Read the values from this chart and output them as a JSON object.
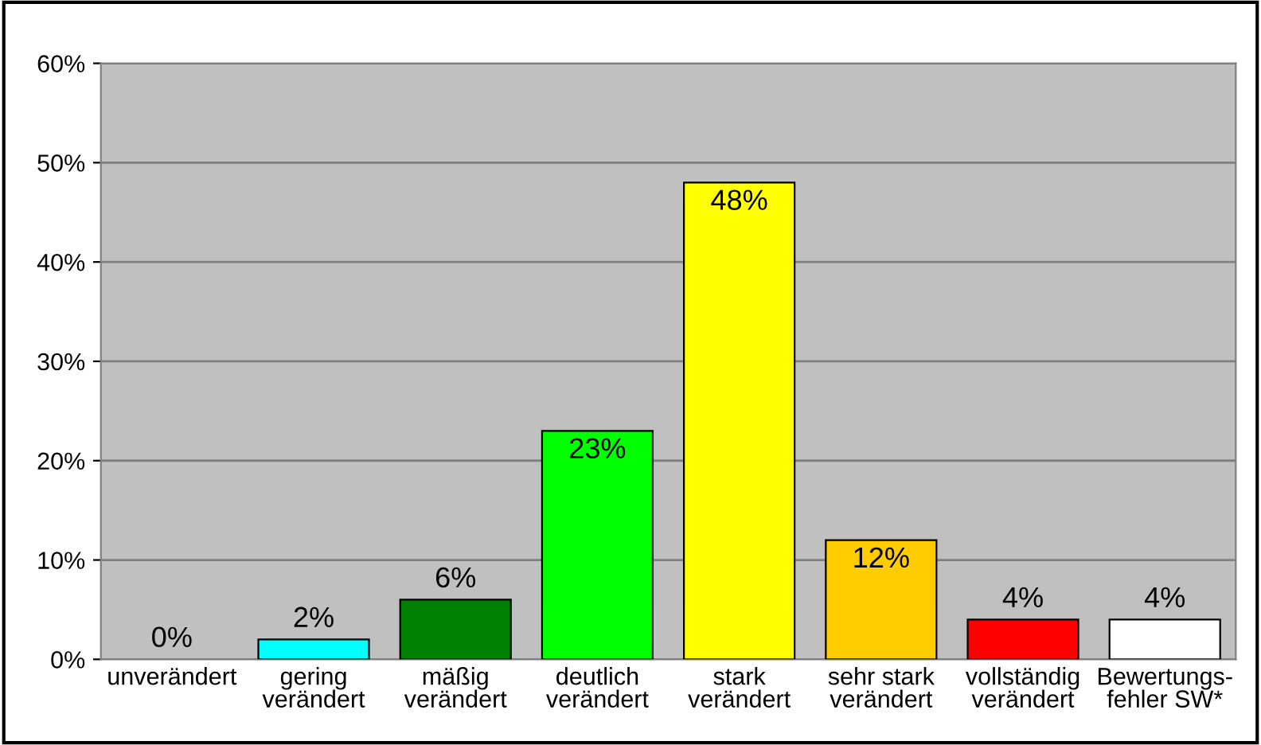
{
  "chart_data": {
    "type": "bar",
    "categories": [
      "unverändert",
      "gering\nverändert",
      "mäßig\nverändert",
      "deutlich\nverändert",
      "stark\nverändert",
      "sehr stark\nverändert",
      "vollständig\nverändert",
      "Bewertungs-\nfehler SW*"
    ],
    "values": [
      0,
      2,
      6,
      23,
      48,
      12,
      4,
      4
    ],
    "colors": [
      "#ffffff",
      "#00ffff",
      "#008000",
      "#00ff00",
      "#ffff00",
      "#ffcc00",
      "#ff0000",
      "#ffffff"
    ],
    "ylim": [
      0,
      60
    ],
    "yticks": [
      {
        "value": 0,
        "label": "0%"
      },
      {
        "value": 10,
        "label": "10%"
      },
      {
        "value": 20,
        "label": "20%"
      },
      {
        "value": 30,
        "label": "30%"
      },
      {
        "value": 40,
        "label": "40%"
      },
      {
        "value": 50,
        "label": "50%"
      },
      {
        "value": 60,
        "label": "60%"
      }
    ],
    "grid": "y",
    "data_labels": true,
    "value_labels": [
      "0%",
      "2%",
      "6%",
      "23%",
      "48%",
      "12%",
      "4%",
      "4%"
    ]
  }
}
